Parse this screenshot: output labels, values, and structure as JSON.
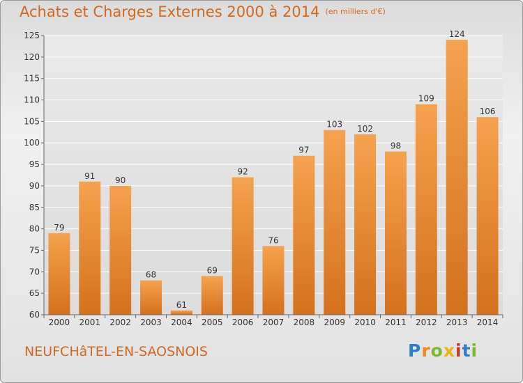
{
  "header": {
    "title": "Achats et Charges Externes 2000 à 2014",
    "unit": "(en milliers d'€)"
  },
  "footer": {
    "commune": "NEUFCHâTEL-EN-SAOSNOIS",
    "logo": [
      "P",
      "r",
      "o",
      "x",
      "i",
      "t",
      "i"
    ],
    "logo_colors": [
      "#2f7dc7",
      "#f08a1c",
      "#7cb82f",
      "#e8b416",
      "#c0392b",
      "#2f7dc7",
      "#7cb82f"
    ]
  },
  "colors": {
    "bar_top": "#f5a24e",
    "bar_bottom": "#d4711d",
    "title": "#d2691e"
  },
  "chart_data": {
    "type": "bar",
    "categories": [
      "2000",
      "2001",
      "2002",
      "2003",
      "2004",
      "2005",
      "2006",
      "2007",
      "2008",
      "2009",
      "2010",
      "2011",
      "2012",
      "2013",
      "2014"
    ],
    "values": [
      79,
      91,
      90,
      68,
      61,
      69,
      92,
      76,
      97,
      103,
      102,
      98,
      109,
      124,
      106
    ],
    "ylim": [
      60,
      125
    ],
    "yticks": [
      60,
      65,
      70,
      75,
      80,
      85,
      90,
      95,
      100,
      105,
      110,
      115,
      120,
      125
    ],
    "grid": true
  }
}
